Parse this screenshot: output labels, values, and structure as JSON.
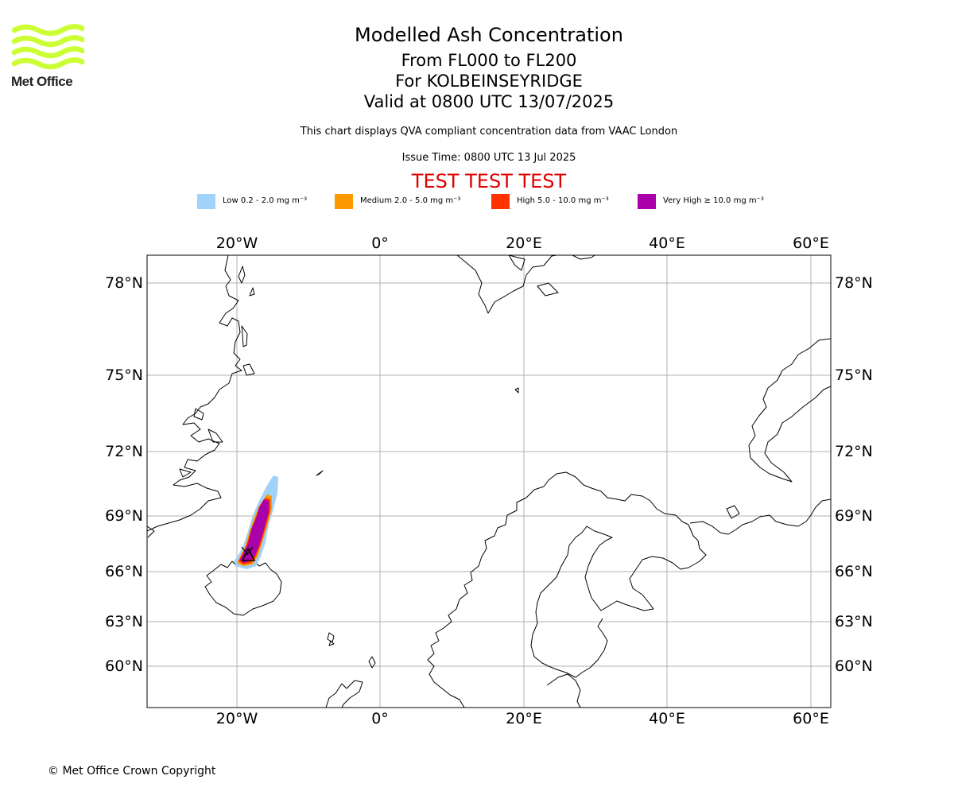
{
  "logo": {
    "text": "Met Office",
    "brand_color": "#ccff33"
  },
  "header": {
    "title": "Modelled Ash Concentration",
    "flight_levels": "From FL000 to FL200",
    "volcano": "For KOLBEINSEYRIDGE",
    "valid_time": "Valid at 0800 UTC 13/07/2025",
    "compliance_note": "This chart displays QVA compliant concentration data from VAAC London",
    "issue_time": "Issue Time: 0800 UTC 13 Jul 2025",
    "test_banner": "TEST TEST TEST"
  },
  "legend": [
    {
      "label": "Low 0.2 - 2.0 mg m⁻³",
      "color": "#a0d2fa"
    },
    {
      "label": "Medium 2.0 - 5.0 mg m⁻³",
      "color": "#ff9900"
    },
    {
      "label": "High 5.0 - 10.0 mg m⁻³",
      "color": "#ff3300"
    },
    {
      "label": "Very High ≥ 10.0 mg m⁻³",
      "color": "#aa00aa"
    }
  ],
  "map": {
    "lon_ticks": [
      "20°W",
      "0°",
      "20°E",
      "40°E",
      "60°E"
    ],
    "lat_ticks": [
      "78°N",
      "75°N",
      "72°N",
      "69°N",
      "66°N",
      "63°N",
      "60°N"
    ],
    "source_marker": "volcano-triangle-icon"
  },
  "footer": {
    "copyright": "© Met Office Crown Copyright"
  }
}
